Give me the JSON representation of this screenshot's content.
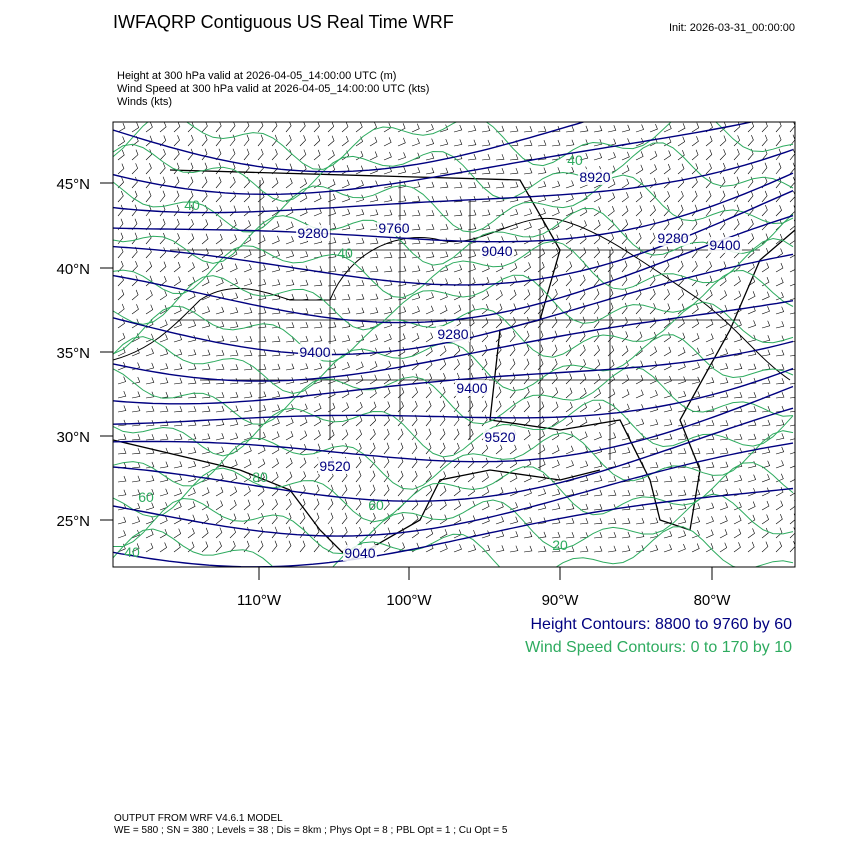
{
  "header": {
    "title": "IWFAQRP Contiguous US Real Time WRF",
    "init": "Init: 2026-03-31_00:00:00",
    "fields": [
      "Height at 300 hPa valid at 2026-04-05_14:00:00 UTC   (m)",
      "Wind Speed at 300 hPa valid at 2026-04-05_14:00:00 UTC   (kts)",
      "Winds   (kts)"
    ]
  },
  "map": {
    "lat_labels": [
      "45°N",
      "40°N",
      "35°N",
      "30°N",
      "25°N"
    ],
    "lon_labels": [
      "110°W",
      "100°W",
      "90°W",
      "80°W"
    ],
    "height_labels": [
      "8920",
      "9280",
      "9760",
      "9040",
      "9280",
      "9400",
      "9280",
      "9400",
      "9400",
      "9520",
      "9520",
      "9040"
    ],
    "wind_labels": [
      "40",
      "40",
      "60",
      "80",
      "60",
      "40",
      "20",
      "40"
    ]
  },
  "legend": {
    "height": "Height Contours: 8800 to 9760 by 60",
    "wind": "Wind Speed Contours: 0 to 170 by 10"
  },
  "footer": {
    "model": "OUTPUT FROM WRF V4.6.1 MODEL",
    "config": "WE = 580 ; SN = 380 ; Levels = 38 ; Dis = 8km ; Phys Opt = 8 ; PBL Opt = 1 ; Cu Opt = 5"
  }
}
